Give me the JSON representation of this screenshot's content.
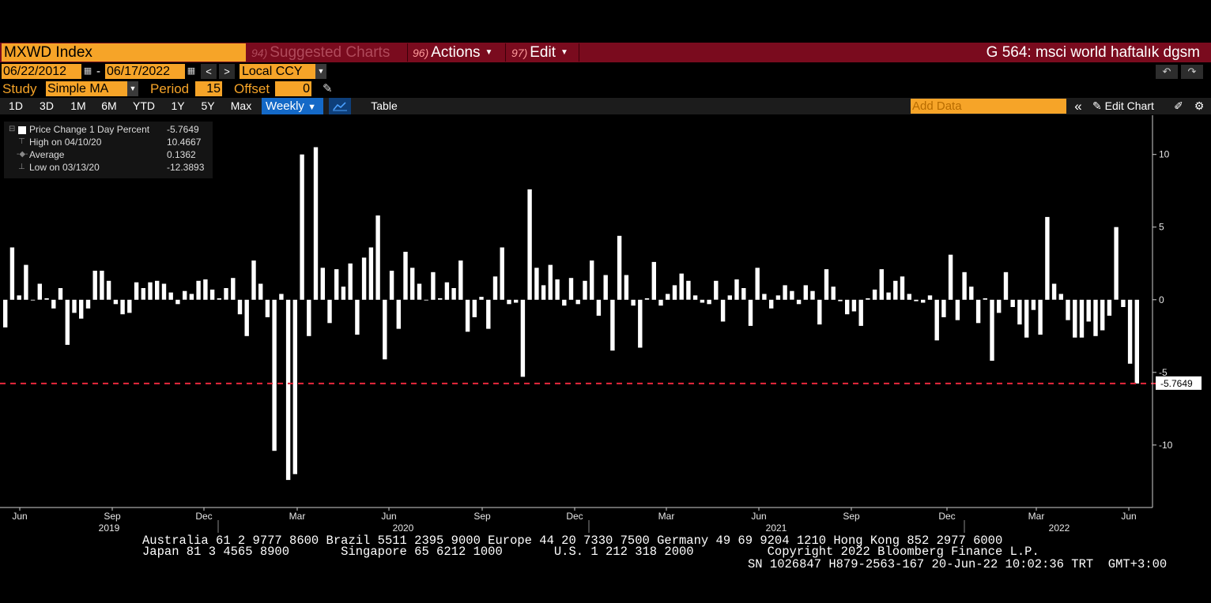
{
  "header": {
    "ticker": "MXWD Index",
    "suggested": {
      "num": "94)",
      "label": "Suggested Charts"
    },
    "actions": {
      "num": "96)",
      "label": "Actions"
    },
    "edit": {
      "num": "97)",
      "label": "Edit"
    },
    "chart_title": "G 564: msci world haftalık dgsm"
  },
  "range": {
    "start": "06/22/2012",
    "dash": "-",
    "end": "06/17/2022",
    "prev": "<",
    "next": ">",
    "currency": "Local CCY"
  },
  "study": {
    "label": "Study",
    "value": "Simple MA",
    "period_label": "Period",
    "period": "15",
    "offset_label": "Offset",
    "offset": "0"
  },
  "toolbar": {
    "ranges": [
      "1D",
      "3D",
      "1M",
      "6M",
      "YTD",
      "1Y",
      "5Y",
      "Max"
    ],
    "frequency": "Weekly",
    "table": "Table",
    "add_data_placeholder": "Add Data",
    "collapse": "«",
    "edit_chart": "Edit Chart"
  },
  "legend": {
    "series": "Price Change 1 Day Percent",
    "last": "-5.7649",
    "high_label": "High on 04/10/20",
    "high": "10.4667",
    "avg_label": "Average",
    "avg": "0.1362",
    "low_label": "Low on 03/13/20",
    "low": "-12.3893"
  },
  "chart_data": {
    "type": "bar",
    "y_ticks": [
      10,
      5,
      0,
      -5,
      -10
    ],
    "ylim": [
      -14.3,
      12.7
    ],
    "last_value": -5.7649,
    "last_label": "-5.7649",
    "month_labels": [
      "Jun",
      "Sep",
      "Dec",
      "Mar",
      "Jun",
      "Sep",
      "Dec",
      "Mar",
      "Jun",
      "Sep",
      "Dec",
      "Mar",
      "Jun"
    ],
    "year_labels": [
      "2019",
      "2020",
      "2021",
      "2022"
    ],
    "values": [
      -1.9,
      3.6,
      0.3,
      2.4,
      0,
      1.1,
      0.1,
      -0.6,
      0.8,
      -3.1,
      -0.9,
      -1.3,
      -0.6,
      2.0,
      2.0,
      1.3,
      -0.3,
      -1.0,
      -0.9,
      1.2,
      0.8,
      1.2,
      1.3,
      1.1,
      0.5,
      -0.3,
      0.6,
      0.4,
      1.3,
      1.4,
      0.7,
      0.1,
      0.8,
      1.5,
      -1.0,
      -2.5,
      2.7,
      1.1,
      -1.2,
      -10.4,
      0.4,
      -12.4,
      -12.0,
      10.0,
      -2.5,
      10.5,
      2.2,
      -1.6,
      2.1,
      0.9,
      2.5,
      -2.4,
      2.9,
      3.6,
      5.8,
      -4.1,
      2.0,
      -2.0,
      3.3,
      2.2,
      1.1,
      0,
      1.9,
      0.1,
      1.2,
      0.8,
      2.7,
      -2.2,
      -1.2,
      0.2,
      -2.0,
      1.6,
      3.6,
      -0.3,
      -0.2,
      -5.3,
      7.6,
      2.2,
      1.0,
      2.4,
      1.4,
      -0.4,
      1.5,
      -0.3,
      1.3,
      2.7,
      -1.1,
      1.7,
      -3.5,
      4.4,
      1.7,
      -0.4,
      -3.3,
      0.1,
      2.6,
      -0.4,
      0.4,
      1.0,
      1.8,
      1.3,
      0.3,
      -0.2,
      -0.3,
      1.3,
      -1.5,
      0.3,
      1.4,
      0.8,
      -1.8,
      2.2,
      0.4,
      -0.6,
      0.3,
      1.0,
      0.6,
      -0.3,
      1.0,
      0.6,
      -1.7,
      2.1,
      0.9,
      -0.1,
      -1.0,
      -0.8,
      -1.8,
      0.1,
      0.7,
      2.1,
      0.5,
      1.3,
      1.6,
      0.4,
      -0.1,
      -0.2,
      0.3,
      -2.8,
      -1.2,
      3.1,
      -1.4,
      1.9,
      0.9,
      -1.6,
      0.1,
      -4.2,
      -0.9,
      1.9,
      -0.5,
      -1.7,
      -2.6,
      -0.7,
      -2.4,
      5.7,
      1.1,
      0.4,
      -1.4,
      -2.6,
      -2.6,
      -1.5,
      -2.5,
      -2.1,
      -1.1,
      5.0,
      -0.5,
      -4.4,
      -5.7649
    ]
  }
}
